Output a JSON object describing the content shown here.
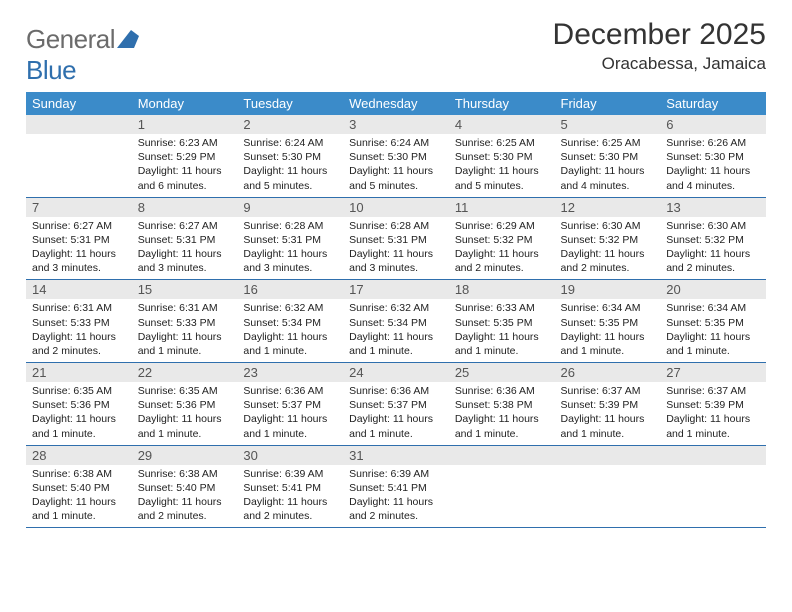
{
  "logo": {
    "text1": "General",
    "text2": "Blue"
  },
  "title": "December 2025",
  "location": "Oracabessa, Jamaica",
  "colors": {
    "header_bg": "#3b8bc9",
    "header_text": "#ffffff",
    "daynum_bg": "#e9e9e9",
    "border": "#2f6fad",
    "logo_gray": "#6b6b6b",
    "logo_blue": "#2f6fad"
  },
  "weekdays": [
    "Sunday",
    "Monday",
    "Tuesday",
    "Wednesday",
    "Thursday",
    "Friday",
    "Saturday"
  ],
  "weeks": [
    [
      {
        "day": "",
        "lines": [
          "",
          "",
          ""
        ]
      },
      {
        "day": "1",
        "lines": [
          "Sunrise: 6:23 AM",
          "Sunset: 5:29 PM",
          "Daylight: 11 hours and 6 minutes."
        ]
      },
      {
        "day": "2",
        "lines": [
          "Sunrise: 6:24 AM",
          "Sunset: 5:30 PM",
          "Daylight: 11 hours and 5 minutes."
        ]
      },
      {
        "day": "3",
        "lines": [
          "Sunrise: 6:24 AM",
          "Sunset: 5:30 PM",
          "Daylight: 11 hours and 5 minutes."
        ]
      },
      {
        "day": "4",
        "lines": [
          "Sunrise: 6:25 AM",
          "Sunset: 5:30 PM",
          "Daylight: 11 hours and 5 minutes."
        ]
      },
      {
        "day": "5",
        "lines": [
          "Sunrise: 6:25 AM",
          "Sunset: 5:30 PM",
          "Daylight: 11 hours and 4 minutes."
        ]
      },
      {
        "day": "6",
        "lines": [
          "Sunrise: 6:26 AM",
          "Sunset: 5:30 PM",
          "Daylight: 11 hours and 4 minutes."
        ]
      }
    ],
    [
      {
        "day": "7",
        "lines": [
          "Sunrise: 6:27 AM",
          "Sunset: 5:31 PM",
          "Daylight: 11 hours and 3 minutes."
        ]
      },
      {
        "day": "8",
        "lines": [
          "Sunrise: 6:27 AM",
          "Sunset: 5:31 PM",
          "Daylight: 11 hours and 3 minutes."
        ]
      },
      {
        "day": "9",
        "lines": [
          "Sunrise: 6:28 AM",
          "Sunset: 5:31 PM",
          "Daylight: 11 hours and 3 minutes."
        ]
      },
      {
        "day": "10",
        "lines": [
          "Sunrise: 6:28 AM",
          "Sunset: 5:31 PM",
          "Daylight: 11 hours and 3 minutes."
        ]
      },
      {
        "day": "11",
        "lines": [
          "Sunrise: 6:29 AM",
          "Sunset: 5:32 PM",
          "Daylight: 11 hours and 2 minutes."
        ]
      },
      {
        "day": "12",
        "lines": [
          "Sunrise: 6:30 AM",
          "Sunset: 5:32 PM",
          "Daylight: 11 hours and 2 minutes."
        ]
      },
      {
        "day": "13",
        "lines": [
          "Sunrise: 6:30 AM",
          "Sunset: 5:32 PM",
          "Daylight: 11 hours and 2 minutes."
        ]
      }
    ],
    [
      {
        "day": "14",
        "lines": [
          "Sunrise: 6:31 AM",
          "Sunset: 5:33 PM",
          "Daylight: 11 hours and 2 minutes."
        ]
      },
      {
        "day": "15",
        "lines": [
          "Sunrise: 6:31 AM",
          "Sunset: 5:33 PM",
          "Daylight: 11 hours and 1 minute."
        ]
      },
      {
        "day": "16",
        "lines": [
          "Sunrise: 6:32 AM",
          "Sunset: 5:34 PM",
          "Daylight: 11 hours and 1 minute."
        ]
      },
      {
        "day": "17",
        "lines": [
          "Sunrise: 6:32 AM",
          "Sunset: 5:34 PM",
          "Daylight: 11 hours and 1 minute."
        ]
      },
      {
        "day": "18",
        "lines": [
          "Sunrise: 6:33 AM",
          "Sunset: 5:35 PM",
          "Daylight: 11 hours and 1 minute."
        ]
      },
      {
        "day": "19",
        "lines": [
          "Sunrise: 6:34 AM",
          "Sunset: 5:35 PM",
          "Daylight: 11 hours and 1 minute."
        ]
      },
      {
        "day": "20",
        "lines": [
          "Sunrise: 6:34 AM",
          "Sunset: 5:35 PM",
          "Daylight: 11 hours and 1 minute."
        ]
      }
    ],
    [
      {
        "day": "21",
        "lines": [
          "Sunrise: 6:35 AM",
          "Sunset: 5:36 PM",
          "Daylight: 11 hours and 1 minute."
        ]
      },
      {
        "day": "22",
        "lines": [
          "Sunrise: 6:35 AM",
          "Sunset: 5:36 PM",
          "Daylight: 11 hours and 1 minute."
        ]
      },
      {
        "day": "23",
        "lines": [
          "Sunrise: 6:36 AM",
          "Sunset: 5:37 PM",
          "Daylight: 11 hours and 1 minute."
        ]
      },
      {
        "day": "24",
        "lines": [
          "Sunrise: 6:36 AM",
          "Sunset: 5:37 PM",
          "Daylight: 11 hours and 1 minute."
        ]
      },
      {
        "day": "25",
        "lines": [
          "Sunrise: 6:36 AM",
          "Sunset: 5:38 PM",
          "Daylight: 11 hours and 1 minute."
        ]
      },
      {
        "day": "26",
        "lines": [
          "Sunrise: 6:37 AM",
          "Sunset: 5:39 PM",
          "Daylight: 11 hours and 1 minute."
        ]
      },
      {
        "day": "27",
        "lines": [
          "Sunrise: 6:37 AM",
          "Sunset: 5:39 PM",
          "Daylight: 11 hours and 1 minute."
        ]
      }
    ],
    [
      {
        "day": "28",
        "lines": [
          "Sunrise: 6:38 AM",
          "Sunset: 5:40 PM",
          "Daylight: 11 hours and 1 minute."
        ]
      },
      {
        "day": "29",
        "lines": [
          "Sunrise: 6:38 AM",
          "Sunset: 5:40 PM",
          "Daylight: 11 hours and 2 minutes."
        ]
      },
      {
        "day": "30",
        "lines": [
          "Sunrise: 6:39 AM",
          "Sunset: 5:41 PM",
          "Daylight: 11 hours and 2 minutes."
        ]
      },
      {
        "day": "31",
        "lines": [
          "Sunrise: 6:39 AM",
          "Sunset: 5:41 PM",
          "Daylight: 11 hours and 2 minutes."
        ]
      },
      {
        "day": "",
        "lines": [
          "",
          "",
          ""
        ]
      },
      {
        "day": "",
        "lines": [
          "",
          "",
          ""
        ]
      },
      {
        "day": "",
        "lines": [
          "",
          "",
          ""
        ]
      }
    ]
  ]
}
